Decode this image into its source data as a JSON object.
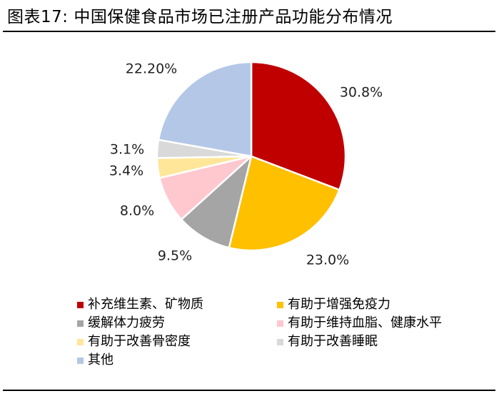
{
  "title": "图表17: 中国保健食品市场已注册产品功能分布情况",
  "chart_data": {
    "type": "pie",
    "title": "",
    "slices": [
      {
        "label": "补充维生素、矿物质",
        "value": 30.8,
        "value_label": "30.8%",
        "color": "#C00000"
      },
      {
        "label": "有助于增强免疫力",
        "value": 23.0,
        "value_label": "23.0%",
        "color": "#FFC000"
      },
      {
        "label": "缓解体力疲劳",
        "value": 9.5,
        "value_label": "9.5%",
        "color": "#A5A5A5"
      },
      {
        "label": "有助于维持血脂、健康水平",
        "value": 8.0,
        "value_label": "8.0%",
        "color": "#FFC7CE"
      },
      {
        "label": "有助于改善骨密度",
        "value": 3.4,
        "value_label": "3.4%",
        "color": "#FFE699"
      },
      {
        "label": "有助于改善睡眠",
        "value": 3.1,
        "value_label": "3.1%",
        "color": "#D9D9D9"
      },
      {
        "label": "其他",
        "value": 22.2,
        "value_label": "22.20%",
        "color": "#B4C7E7"
      }
    ],
    "start_angle_deg": 0,
    "direction": "clockwise",
    "legend_position": "bottom"
  }
}
